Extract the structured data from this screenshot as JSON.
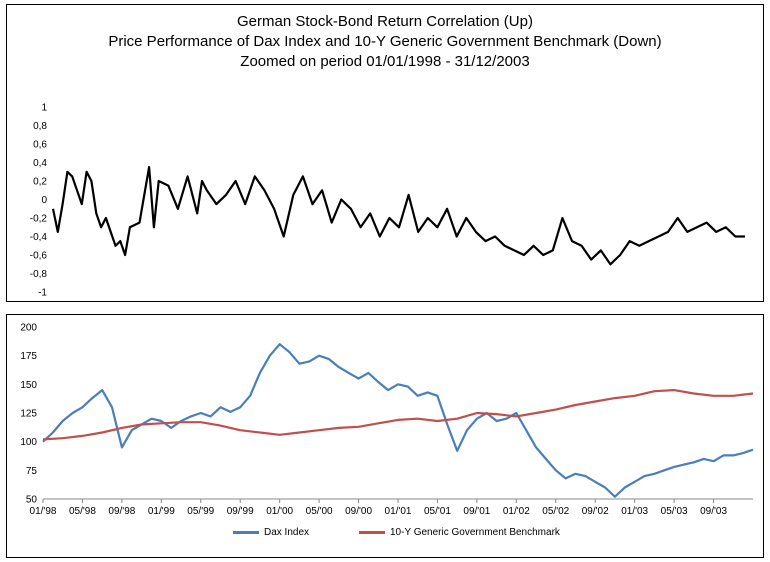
{
  "colors": {
    "dax": "#4a7ebb",
    "bund": "#c0504d",
    "corr": "#000000"
  },
  "chart_data": [
    {
      "type": "line",
      "title": [
        "German Stock-Bond Return Correlation (Up)",
        "Price Performance of Dax Index and 10-Y Generic Government Benchmark (Down)",
        "Zoomed on period 01/01/1998 - 31/12/2003"
      ],
      "ylim": [
        -1,
        1
      ],
      "yticks": [
        "1",
        "0,8",
        "0,6",
        "0,4",
        "0,2",
        "0",
        "-0,2",
        "-0,4",
        "-0,6",
        "-0,8",
        "-1"
      ],
      "xlim": [
        0,
        72
      ],
      "series": [
        {
          "color": "#000000",
          "x": [
            0,
            0.5,
            1,
            1.5,
            2,
            2.5,
            3,
            3.5,
            4,
            4.5,
            5,
            5.5,
            6,
            6.5,
            7,
            7.5,
            8,
            9,
            10,
            10.5,
            11,
            12,
            13,
            14,
            15,
            15.5,
            16,
            17,
            18,
            19,
            20,
            21,
            22,
            23,
            24,
            25,
            26,
            27,
            28,
            29,
            30,
            31,
            32,
            33,
            34,
            35,
            36,
            37,
            38,
            39,
            40,
            41,
            42,
            43,
            44,
            45,
            46,
            47,
            48,
            49,
            50,
            51,
            52,
            53,
            54,
            55,
            56,
            57,
            58,
            59,
            60,
            61,
            62,
            63,
            64,
            65,
            66,
            67,
            68,
            69,
            70,
            71,
            72
          ],
          "y": [
            -0.1,
            -0.35,
            -0.05,
            0.3,
            0.25,
            0.1,
            -0.05,
            0.3,
            0.2,
            -0.15,
            -0.3,
            -0.2,
            -0.35,
            -0.5,
            -0.45,
            -0.6,
            -0.3,
            -0.25,
            0.35,
            -0.3,
            0.2,
            0.15,
            -0.1,
            0.25,
            -0.15,
            0.2,
            0.1,
            -0.05,
            0.05,
            0.2,
            -0.05,
            0.25,
            0.1,
            -0.1,
            -0.4,
            0.05,
            0.25,
            -0.05,
            0.1,
            -0.25,
            0.0,
            -0.1,
            -0.3,
            -0.15,
            -0.4,
            -0.2,
            -0.3,
            0.05,
            -0.35,
            -0.2,
            -0.3,
            -0.1,
            -0.4,
            -0.2,
            -0.35,
            -0.45,
            -0.4,
            -0.5,
            -0.55,
            -0.6,
            -0.5,
            -0.6,
            -0.55,
            -0.2,
            -0.45,
            -0.5,
            -0.65,
            -0.55,
            -0.7,
            -0.6,
            -0.45,
            -0.5,
            -0.45,
            -0.4,
            -0.35,
            -0.2,
            -0.35,
            -0.3,
            -0.25,
            -0.35,
            -0.3,
            -0.4,
            -0.4
          ]
        }
      ]
    },
    {
      "type": "line",
      "ylim": [
        50,
        200
      ],
      "yticks": [
        "200",
        "175",
        "150",
        "125",
        "100",
        "75",
        "50"
      ],
      "xlim": [
        0,
        72
      ],
      "categories": [
        "01/'98",
        "05/'98",
        "09/'98",
        "01/'99",
        "05/'99",
        "09/'99",
        "01/'00",
        "05/'00",
        "09/'00",
        "01/'01",
        "05/'01",
        "09/'01",
        "01/'02",
        "05/'02",
        "09/'02",
        "01/'03",
        "05/'03",
        "09/'03"
      ],
      "series": [
        {
          "name": "Dax Index",
          "color": "#4a7ebb",
          "x": [
            0,
            1,
            2,
            3,
            4,
            5,
            6,
            7,
            8,
            9,
            10,
            11,
            12,
            13,
            14,
            15,
            16,
            17,
            18,
            19,
            20,
            21,
            22,
            23,
            24,
            25,
            26,
            27,
            28,
            29,
            30,
            31,
            32,
            33,
            34,
            35,
            36,
            37,
            38,
            39,
            40,
            41,
            42,
            43,
            44,
            45,
            46,
            47,
            48,
            49,
            50,
            51,
            52,
            53,
            54,
            55,
            56,
            57,
            58,
            59,
            60,
            61,
            62,
            63,
            64,
            65,
            66,
            67,
            68,
            69,
            70,
            71,
            72
          ],
          "y": [
            100,
            108,
            118,
            125,
            130,
            138,
            145,
            130,
            95,
            110,
            115,
            120,
            118,
            112,
            118,
            122,
            125,
            122,
            130,
            126,
            130,
            140,
            160,
            175,
            185,
            178,
            168,
            170,
            175,
            172,
            165,
            160,
            155,
            160,
            152,
            145,
            150,
            148,
            140,
            143,
            140,
            115,
            92,
            110,
            120,
            125,
            118,
            120,
            125,
            110,
            95,
            85,
            75,
            68,
            72,
            70,
            65,
            60,
            52,
            60,
            65,
            70,
            72,
            75,
            78,
            80,
            82,
            85,
            83,
            88,
            88,
            90,
            93
          ]
        },
        {
          "name": "10-Y Generic Government Benchmark",
          "color": "#c0504d",
          "x": [
            0,
            2,
            4,
            6,
            8,
            10,
            12,
            14,
            16,
            18,
            20,
            22,
            24,
            26,
            28,
            30,
            32,
            34,
            36,
            38,
            40,
            42,
            44,
            46,
            48,
            50,
            52,
            54,
            56,
            58,
            60,
            62,
            64,
            66,
            68,
            70,
            72
          ],
          "y": [
            102,
            103,
            105,
            108,
            112,
            115,
            116,
            117,
            117,
            114,
            110,
            108,
            106,
            108,
            110,
            112,
            113,
            116,
            119,
            120,
            118,
            120,
            125,
            124,
            122,
            125,
            128,
            132,
            135,
            138,
            140,
            144,
            145,
            142,
            140,
            140,
            142
          ]
        }
      ]
    }
  ]
}
